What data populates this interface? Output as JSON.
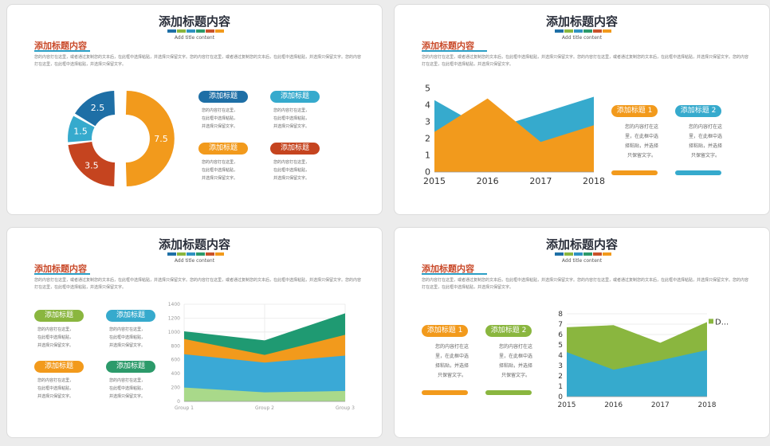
{
  "palette": [
    "#1e6fa6",
    "#8ab63f",
    "#2f93c2",
    "#2c9a6a",
    "#c9532a",
    "#f29a1c"
  ],
  "slides": [
    {
      "title": "添加标题内容",
      "subtitle": "Add title content",
      "section": "添加标题内容",
      "paragraph": "您的内容打在这里，或者通过复制您的文本后，在此框中选择粘贴，并选择只保留文字。您的内容打在这里，或者通过复制您的文本后，在此框中选择粘贴，并选择只保留文字。您的内容打在这里，在此框中选择粘贴，并选择只保留文字。",
      "boxes": [
        {
          "label": "添加标题",
          "color": "#1e6fa6",
          "text": "您的内容打在这里，\n在此框中选择粘贴，\n并选择只保留文字。"
        },
        {
          "label": "添加标题",
          "color": "#36aacd",
          "text": "您的内容打在这里，\n在此框中选择粘贴，\n并选择只保留文字。"
        },
        {
          "label": "添加标题",
          "color": "#f29a1c",
          "text": "您的内容打在这里，\n在此框中选择粘贴，\n并选择只保留文字。"
        },
        {
          "label": "添加标题",
          "color": "#c5441f",
          "text": "您的内容打在这里，\n在此框中选择粘贴，\n并选择只保留文字。"
        }
      ]
    },
    {
      "title": "添加标题内容",
      "subtitle": "Add title content",
      "section": "添加标题内容",
      "paragraph": "您的内容打在这里，或者通过复制您的文本后，在此框中选择粘贴，并选择只保留文字。您的内容打在这里，或者通过复制您的文本后，在此框中选择粘贴，并选择只保留文字。您的内容打在这里，在此框中选择粘贴，并选择只保留文字。",
      "boxes": [
        {
          "label": "添加标题 1",
          "color": "#f29a1c",
          "text": "您的内容打在这\n里，在此框中选\n择粘贴，并选择\n只保留文字。"
        },
        {
          "label": "添加标题 2",
          "color": "#36aacd",
          "text": "您的内容打在这\n里，在此框中选\n择粘贴，并选择\n只保留文字。"
        }
      ]
    },
    {
      "title": "添加标题内容",
      "subtitle": "Add title content",
      "section": "添加标题内容",
      "paragraph": "您的内容打在这里，或者通过复制您的文本后，在此框中选择粘贴，并选择只保留文字。您的内容打在这里，或者通过复制您的文本后，在此框中选择粘贴，并选择只保留文字。您的内容打在这里，在此框中选择粘贴，并选择只保留文字。",
      "boxes": [
        {
          "label": "添加标题",
          "color": "#8ab63f",
          "text": "您的内容打在这里，\n在此框中选择粘贴，\n并选择只保留文字。"
        },
        {
          "label": "添加标题",
          "color": "#36aacd",
          "text": "您的内容打在这里，\n在此框中选择粘贴，\n并选择只保留文字。"
        },
        {
          "label": "添加标题",
          "color": "#f29a1c",
          "text": "您的内容打在这里，\n在此框中选择粘贴，\n并选择只保留文字。"
        },
        {
          "label": "添加标题",
          "color": "#2c9a6a",
          "text": "您的内容打在这里，\n在此框中选择粘贴，\n并选择只保留文字。"
        }
      ]
    },
    {
      "title": "添加标题内容",
      "subtitle": "Add title content",
      "section": "添加标题内容",
      "paragraph": "您的内容打在这里，或者通过复制您的文本后，在此框中选择粘贴，并选择只保留文字。您的内容打在这里，或者通过复制您的文本后，在此框中选择粘贴，并选择只保留文字。您的内容打在这里，在此框中选择粘贴，并选择只保留文字。",
      "boxes": [
        {
          "label": "添加标题 1",
          "color": "#f29a1c",
          "text": "您的内容打在这\n里，在此框中选\n择粘贴，并选择\n只保留文字。"
        },
        {
          "label": "添加标题 2",
          "color": "#8ab63f",
          "text": "您的内容打在这\n里，在此框中选\n择粘贴，并选择\n只保留文字。"
        }
      ]
    }
  ],
  "chart_data": [
    {
      "type": "pie",
      "values": [
        7.5,
        3.5,
        1.5,
        2.5
      ],
      "labels": [
        "7.5",
        "3.5",
        "1.5",
        "2.5"
      ],
      "colors": [
        "#f29a1c",
        "#c5441f",
        "#36aacd",
        "#1e6fa6"
      ]
    },
    {
      "type": "area",
      "categories": [
        "2015",
        "2016",
        "2017",
        "2018"
      ],
      "ylim": [
        0,
        5
      ],
      "yticks": [
        "0",
        "1",
        "2",
        "3",
        "4",
        "5"
      ],
      "series": [
        {
          "values": [
            4.3,
            2.5,
            3.5,
            4.5
          ],
          "color": "#36aacd"
        },
        {
          "values": [
            2.4,
            4.4,
            1.8,
            2.8
          ],
          "color": "#f29a1c"
        }
      ]
    },
    {
      "type": "area",
      "categories": [
        "Group 1",
        "Group 2",
        "Group 3"
      ],
      "ylim": [
        0,
        1400
      ],
      "yticks": [
        "0",
        "200",
        "400",
        "600",
        "800",
        "1000",
        "1200",
        "1400"
      ],
      "series": [
        {
          "values": [
            1010,
            880,
            1270
          ],
          "color": "#1f9a72"
        },
        {
          "values": [
            900,
            670,
            960
          ],
          "color": "#f29a1c"
        },
        {
          "values": [
            680,
            560,
            660
          ],
          "color": "#3aa9d6"
        },
        {
          "values": [
            200,
            130,
            150
          ],
          "color": "#a9d98a"
        }
      ]
    },
    {
      "type": "area",
      "categories": [
        "2015",
        "2016",
        "2017",
        "2018"
      ],
      "ylim": [
        0,
        8
      ],
      "yticks": [
        "0",
        "1",
        "2",
        "3",
        "4",
        "5",
        "6",
        "7",
        "8"
      ],
      "series": [
        {
          "name": "D...",
          "values": [
            6.7,
            6.9,
            5.2,
            7.2
          ],
          "color": "#8ab63f"
        },
        {
          "values": [
            4.3,
            2.6,
            3.5,
            4.5
          ],
          "color": "#36aacd"
        }
      ]
    }
  ]
}
